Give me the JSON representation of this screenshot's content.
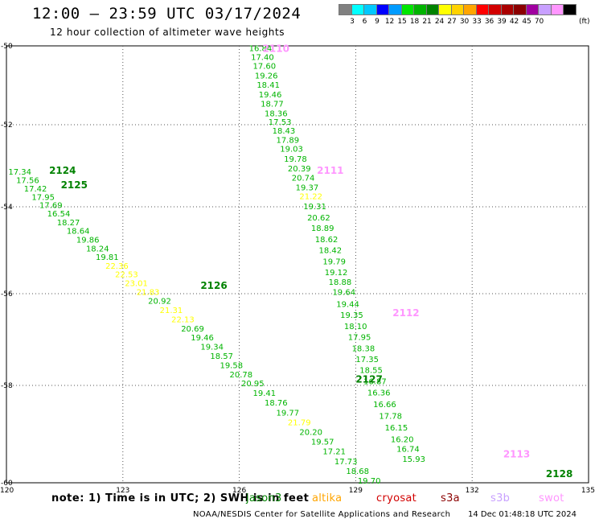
{
  "header": {
    "title": "12:00 – 23:59 UTC 03/17/2024",
    "subtitle": "12 hour collection of altimeter wave heights"
  },
  "legend": {
    "colors": [
      "#808080",
      "#00ffff",
      "#00c8ff",
      "#0000ff",
      "#009bff",
      "#00e600",
      "#00b400",
      "#008200",
      "#ffff00",
      "#ffd200",
      "#ffa500",
      "#ff0000",
      "#d20000",
      "#aa0000",
      "#8b0000",
      "#a000a0",
      "#c8a0ff",
      "#ff96ff",
      "#000000"
    ],
    "ticks": [
      "3",
      "6",
      "9",
      "12",
      "15",
      "18",
      "21",
      "24",
      "27",
      "30",
      "33",
      "36",
      "39",
      "42",
      "45",
      "70"
    ],
    "unit": "(ft)"
  },
  "map_axes": {
    "lat_labels": [
      "-50",
      "-52",
      "-54",
      "-56",
      "-58",
      "-60"
    ],
    "lon_labels": [
      "120",
      "123",
      "126",
      "129",
      "132",
      "135"
    ]
  },
  "chart_data": {
    "type": "scatter",
    "title": "12:00 – 23:59 UTC 03/17/2024",
    "subtitle": "12 hour collection of altimeter wave heights",
    "xlabel": "",
    "ylabel": "",
    "x_ticks": [
      120,
      123,
      126,
      129,
      132,
      135
    ],
    "y_ticks": [
      -50,
      -52,
      -54,
      -56,
      -58,
      -60
    ],
    "grid": true,
    "units": "ft",
    "track_labels": [
      {
        "id": "2110",
        "lon": 126.6,
        "lat": -50.05,
        "color": "#ff96ff"
      },
      {
        "id": "2111",
        "lon": 128.0,
        "lat": -53.1,
        "color": "#ff96ff"
      },
      {
        "id": "2112",
        "lon": 129.95,
        "lat": -56.4,
        "color": "#ff96ff"
      },
      {
        "id": "2113",
        "lon": 132.8,
        "lat": -59.4,
        "color": "#ff96ff"
      },
      {
        "id": "2124",
        "lon": 121.1,
        "lat": -53.1,
        "color": "#008200"
      },
      {
        "id": "2125",
        "lon": 121.4,
        "lat": -53.45,
        "color": "#008200"
      },
      {
        "id": "2126",
        "lon": 125.0,
        "lat": -55.8,
        "color": "#008200"
      },
      {
        "id": "2127",
        "lon": 129.0,
        "lat": -57.85,
        "color": "#008200"
      },
      {
        "id": "2128",
        "lon": 133.9,
        "lat": -59.8,
        "color": "#008200"
      }
    ],
    "series": [
      {
        "values": [
          {
            "lon": 126.25,
            "lat": -50.05,
            "swh": "16.84"
          },
          {
            "lon": 126.3,
            "lat": -50.28,
            "swh": "17.40"
          },
          {
            "lon": 126.35,
            "lat": -50.5,
            "swh": "17.60"
          },
          {
            "lon": 126.4,
            "lat": -50.74,
            "swh": "19.26"
          },
          {
            "lon": 126.45,
            "lat": -50.98,
            "swh": "18.41"
          },
          {
            "lon": 126.5,
            "lat": -51.22,
            "swh": "19.46"
          },
          {
            "lon": 126.55,
            "lat": -51.46,
            "swh": "18.77"
          },
          {
            "lon": 126.65,
            "lat": -51.7,
            "swh": "18.36"
          },
          {
            "lon": 126.75,
            "lat": -51.92,
            "swh": "17.53"
          },
          {
            "lon": 126.85,
            "lat": -52.14,
            "swh": "18.43"
          },
          {
            "lon": 126.95,
            "lat": -52.36,
            "swh": "17.89"
          },
          {
            "lon": 127.05,
            "lat": -52.58,
            "swh": "19.03"
          },
          {
            "lon": 127.15,
            "lat": -52.82,
            "swh": "19.78"
          },
          {
            "lon": 127.25,
            "lat": -53.06,
            "swh": "20.39"
          },
          {
            "lon": 127.35,
            "lat": -53.28,
            "swh": "20.74"
          },
          {
            "lon": 127.45,
            "lat": -53.52,
            "swh": "19.37"
          },
          {
            "lon": 127.55,
            "lat": -53.74,
            "swh": "21.22",
            "color": "#ffff00"
          },
          {
            "lon": 127.65,
            "lat": -53.98,
            "swh": "19.31"
          },
          {
            "lon": 127.75,
            "lat": -54.24,
            "swh": "20.62"
          },
          {
            "lon": 127.85,
            "lat": -54.48,
            "swh": "18.89"
          },
          {
            "lon": 127.95,
            "lat": -54.74,
            "swh": "18.62"
          },
          {
            "lon": 128.05,
            "lat": -54.99,
            "swh": "18.42"
          },
          {
            "lon": 128.15,
            "lat": -55.25,
            "swh": "19.79"
          },
          {
            "lon": 128.2,
            "lat": -55.5,
            "swh": "19.12"
          },
          {
            "lon": 128.3,
            "lat": -55.72,
            "swh": "18.88"
          },
          {
            "lon": 128.4,
            "lat": -55.95,
            "swh": "19.64"
          },
          {
            "lon": 128.5,
            "lat": -56.22,
            "swh": "19.44"
          },
          {
            "lon": 128.6,
            "lat": -56.46,
            "swh": "19.35"
          },
          {
            "lon": 128.7,
            "lat": -56.7,
            "swh": "18.10"
          },
          {
            "lon": 128.8,
            "lat": -56.94,
            "swh": "17.95"
          },
          {
            "lon": 128.9,
            "lat": -57.18,
            "swh": "18.38"
          },
          {
            "lon": 129.0,
            "lat": -57.42,
            "swh": "17.35"
          },
          {
            "lon": 129.1,
            "lat": -57.66,
            "swh": "18.55"
          },
          {
            "lon": 129.2,
            "lat": -57.9,
            "swh": "16.87"
          },
          {
            "lon": 129.3,
            "lat": -58.14,
            "swh": "16.36"
          },
          {
            "lon": 129.45,
            "lat": -58.38,
            "swh": "16.66"
          },
          {
            "lon": 129.6,
            "lat": -58.62,
            "swh": "17.78"
          },
          {
            "lon": 129.75,
            "lat": -58.86,
            "swh": "16.15"
          },
          {
            "lon": 129.9,
            "lat": -59.1,
            "swh": "16.20"
          },
          {
            "lon": 130.05,
            "lat": -59.3,
            "swh": "16.74"
          },
          {
            "lon": 130.2,
            "lat": -59.5,
            "swh": "15.93"
          }
        ]
      },
      {
        "values": [
          {
            "lon": 120.05,
            "lat": -53.14,
            "swh": "17.34"
          },
          {
            "lon": 120.25,
            "lat": -53.34,
            "swh": "17.56"
          },
          {
            "lon": 120.45,
            "lat": -53.55,
            "swh": "17.42"
          },
          {
            "lon": 120.65,
            "lat": -53.75,
            "swh": "17.95"
          },
          {
            "lon": 120.85,
            "lat": -53.95,
            "swh": "17.69"
          },
          {
            "lon": 121.05,
            "lat": -54.15,
            "swh": "16.54"
          },
          {
            "lon": 121.3,
            "lat": -54.35,
            "swh": "18.27"
          },
          {
            "lon": 121.55,
            "lat": -54.55,
            "swh": "18.64"
          },
          {
            "lon": 121.8,
            "lat": -54.75,
            "swh": "19.86"
          },
          {
            "lon": 122.05,
            "lat": -54.95,
            "swh": "18.24"
          },
          {
            "lon": 122.3,
            "lat": -55.15,
            "swh": "19.81"
          },
          {
            "lon": 122.55,
            "lat": -55.35,
            "swh": "22.36",
            "color": "#ffff00"
          },
          {
            "lon": 122.8,
            "lat": -55.55,
            "swh": "22.53",
            "color": "#ffff00"
          },
          {
            "lon": 123.05,
            "lat": -55.75,
            "swh": "23.01",
            "color": "#ffff00"
          },
          {
            "lon": 123.35,
            "lat": -55.95,
            "swh": "21.83",
            "color": "#ffff00"
          },
          {
            "lon": 123.65,
            "lat": -56.15,
            "swh": "20.92"
          },
          {
            "lon": 123.95,
            "lat": -56.35,
            "swh": "21.31",
            "color": "#ffff00"
          },
          {
            "lon": 124.25,
            "lat": -56.55,
            "swh": "22.13",
            "color": "#ffff00"
          },
          {
            "lon": 124.5,
            "lat": -56.75,
            "swh": "20.69"
          },
          {
            "lon": 124.75,
            "lat": -56.95,
            "swh": "19.46"
          },
          {
            "lon": 125.0,
            "lat": -57.15,
            "swh": "19.34"
          },
          {
            "lon": 125.25,
            "lat": -57.35,
            "swh": "18.57"
          },
          {
            "lon": 125.5,
            "lat": -57.55,
            "swh": "19.58"
          },
          {
            "lon": 125.75,
            "lat": -57.75,
            "swh": "20.78"
          },
          {
            "lon": 126.05,
            "lat": -57.95,
            "swh": "20.95"
          },
          {
            "lon": 126.35,
            "lat": -58.15,
            "swh": "19.41"
          },
          {
            "lon": 126.65,
            "lat": -58.35,
            "swh": "18.76"
          },
          {
            "lon": 126.95,
            "lat": -58.55,
            "swh": "19.77"
          },
          {
            "lon": 127.25,
            "lat": -58.75,
            "swh": "21.79",
            "color": "#ffff00"
          },
          {
            "lon": 127.55,
            "lat": -58.95,
            "swh": "20.20"
          },
          {
            "lon": 127.85,
            "lat": -59.15,
            "swh": "19.57"
          },
          {
            "lon": 128.15,
            "lat": -59.35,
            "swh": "17.21"
          },
          {
            "lon": 128.45,
            "lat": -59.55,
            "swh": "17.73"
          },
          {
            "lon": 128.75,
            "lat": -59.75,
            "swh": "18.68"
          },
          {
            "lon": 129.05,
            "lat": -59.95,
            "swh": "19.70"
          }
        ]
      }
    ]
  },
  "footer": {
    "note": "note: 1) Time is in UTC; 2) SWH is in feet",
    "missions": [
      {
        "name": "jason3",
        "color": "#008200"
      },
      {
        "name": "altika",
        "color": "#ffa500"
      },
      {
        "name": "cryosat",
        "color": "#d20000"
      },
      {
        "name": "s3a",
        "color": "#8b0000"
      },
      {
        "name": "s3b",
        "color": "#c8a0ff"
      },
      {
        "name": "swot",
        "color": "#ff96ff"
      }
    ],
    "credit": "NOAA/NESDIS Center for Satellite Applications and Research",
    "timestamp": "14 Dec 01:48:18 UTC 2024"
  }
}
